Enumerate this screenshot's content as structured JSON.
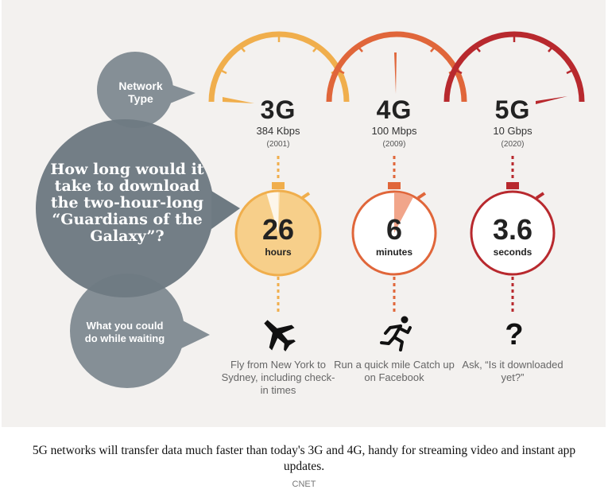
{
  "infographic": {
    "network_type_label": "Network Type",
    "question": "How long would it take to download the two-hour-long “Guardians of the Galaxy”?",
    "waiting_label": "What you could do while waiting",
    "colors": {
      "g3": "#f0ae4c",
      "g4": "#e0663a",
      "g5": "#b8292e",
      "bubble": "#858f96",
      "bubble_dark": "#6e7a82"
    },
    "generations": [
      {
        "name": "3G",
        "speed": "384 Kbps",
        "year": "(2001)",
        "time_value": "26",
        "time_unit": "hours",
        "activity": "Fly from New York to Sydney, including check-in times",
        "icon": "airplane-icon"
      },
      {
        "name": "4G",
        "speed": "100 Mbps",
        "year": "(2009)",
        "time_value": "6",
        "time_unit": "minutes",
        "activity": "Run a quick mile Catch up on Facebook",
        "icon": "runner-icon"
      },
      {
        "name": "5G",
        "speed": "10 Gbps",
        "year": "(2020)",
        "time_value": "3.6",
        "time_unit": "seconds",
        "activity": "Ask, “Is it downloaded yet?”",
        "icon": "question-mark-icon"
      }
    ]
  },
  "caption": "5G networks will transfer data much faster than today's 3G and 4G, handy for streaming video and instant app updates.",
  "source": "CNET"
}
